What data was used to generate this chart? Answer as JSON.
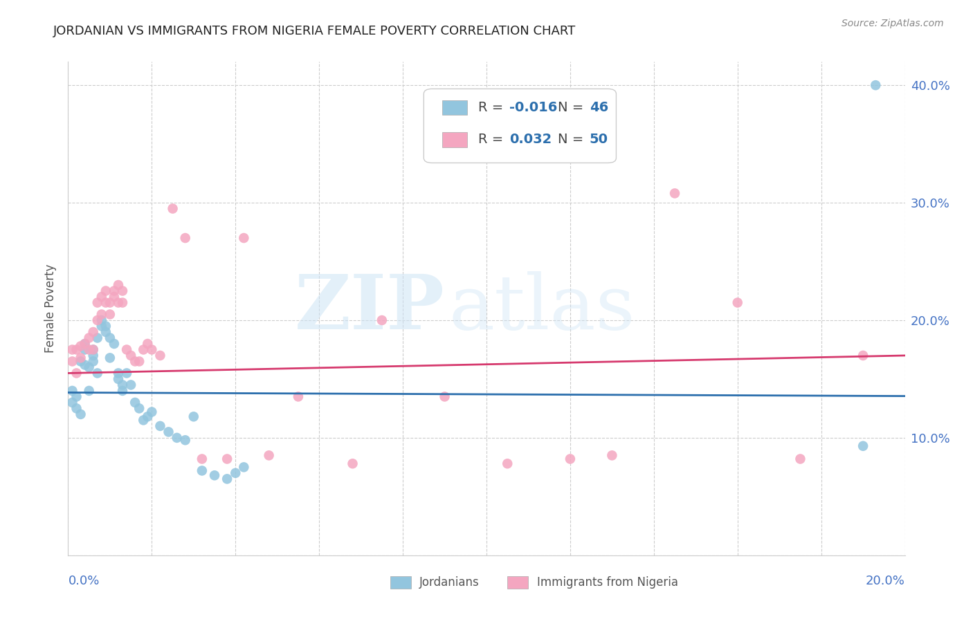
{
  "title": "JORDANIAN VS IMMIGRANTS FROM NIGERIA FEMALE POVERTY CORRELATION CHART",
  "source": "Source: ZipAtlas.com",
  "ylabel": "Female Poverty",
  "blue_color": "#92c5de",
  "pink_color": "#f4a6c0",
  "blue_line_color": "#2c6fad",
  "pink_line_color": "#d63a6e",
  "blue_legend_color": "#92c5de",
  "pink_legend_color": "#f4a6c0",
  "r_blue": "-0.016",
  "n_blue": "46",
  "r_pink": "0.032",
  "n_pink": "50",
  "xlim": [
    0.0,
    0.2
  ],
  "ylim": [
    0.0,
    0.42
  ],
  "xtick_vals": [
    0.0,
    0.02,
    0.04,
    0.06,
    0.08,
    0.1,
    0.12,
    0.14,
    0.16,
    0.18,
    0.2
  ],
  "ytick_vals": [
    0.0,
    0.1,
    0.2,
    0.3,
    0.4
  ],
  "ytick_labels": [
    "",
    "10.0%",
    "20.0%",
    "30.0%",
    "40.0%"
  ],
  "xtick_edge_labels": [
    "0.0%",
    "20.0%"
  ],
  "background_color": "#ffffff",
  "grid_color": "#cccccc",
  "blue_trend_start": 0.1385,
  "blue_trend_end": 0.1355,
  "pink_trend_start": 0.155,
  "pink_trend_end": 0.17,
  "jordanians_x": [
    0.001,
    0.001,
    0.002,
    0.002,
    0.003,
    0.003,
    0.004,
    0.004,
    0.004,
    0.005,
    0.005,
    0.006,
    0.006,
    0.006,
    0.007,
    0.007,
    0.008,
    0.008,
    0.009,
    0.009,
    0.01,
    0.01,
    0.011,
    0.012,
    0.012,
    0.013,
    0.013,
    0.014,
    0.015,
    0.016,
    0.017,
    0.018,
    0.019,
    0.02,
    0.022,
    0.024,
    0.026,
    0.028,
    0.03,
    0.032,
    0.035,
    0.038,
    0.04,
    0.042,
    0.19,
    0.193
  ],
  "jordanians_y": [
    0.13,
    0.14,
    0.135,
    0.125,
    0.12,
    0.165,
    0.175,
    0.18,
    0.162,
    0.14,
    0.16,
    0.17,
    0.165,
    0.175,
    0.155,
    0.185,
    0.195,
    0.2,
    0.195,
    0.19,
    0.168,
    0.185,
    0.18,
    0.15,
    0.155,
    0.14,
    0.145,
    0.155,
    0.145,
    0.13,
    0.125,
    0.115,
    0.118,
    0.122,
    0.11,
    0.105,
    0.1,
    0.098,
    0.118,
    0.072,
    0.068,
    0.065,
    0.07,
    0.075,
    0.093,
    0.4
  ],
  "nigeria_x": [
    0.001,
    0.001,
    0.002,
    0.002,
    0.003,
    0.003,
    0.004,
    0.005,
    0.005,
    0.006,
    0.006,
    0.007,
    0.007,
    0.008,
    0.008,
    0.009,
    0.009,
    0.01,
    0.01,
    0.011,
    0.011,
    0.012,
    0.012,
    0.013,
    0.013,
    0.014,
    0.015,
    0.016,
    0.017,
    0.018,
    0.019,
    0.02,
    0.022,
    0.025,
    0.028,
    0.032,
    0.038,
    0.042,
    0.048,
    0.055,
    0.068,
    0.075,
    0.09,
    0.105,
    0.12,
    0.13,
    0.145,
    0.16,
    0.175,
    0.19
  ],
  "nigeria_y": [
    0.165,
    0.175,
    0.155,
    0.175,
    0.178,
    0.168,
    0.18,
    0.175,
    0.185,
    0.19,
    0.175,
    0.2,
    0.215,
    0.205,
    0.22,
    0.215,
    0.225,
    0.205,
    0.215,
    0.225,
    0.22,
    0.23,
    0.215,
    0.215,
    0.225,
    0.175,
    0.17,
    0.165,
    0.165,
    0.175,
    0.18,
    0.175,
    0.17,
    0.295,
    0.27,
    0.082,
    0.082,
    0.27,
    0.085,
    0.135,
    0.078,
    0.2,
    0.135,
    0.078,
    0.082,
    0.085,
    0.308,
    0.215,
    0.082,
    0.17
  ]
}
